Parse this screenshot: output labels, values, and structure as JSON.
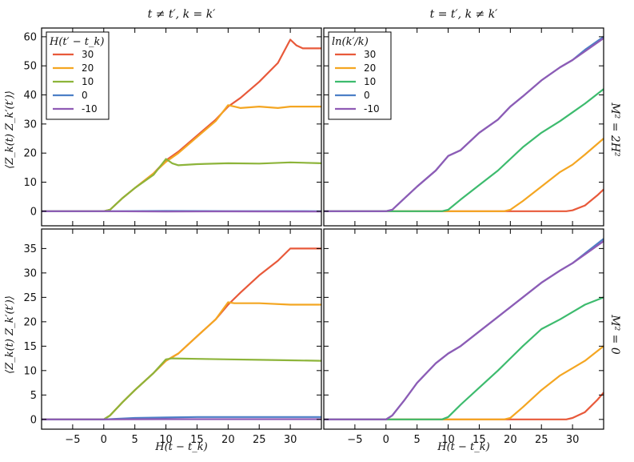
{
  "column_headers": [
    "t ≠ t′,    k = k′",
    "t = t′,    k ≠ k′"
  ],
  "row_labels": [
    "M² = 2H²",
    "M² = 0"
  ],
  "ylabel": "⟨Z_k(t) Z_k′(t′)⟩",
  "xlabel": "H(t − t_k)",
  "colors": {
    "30": "#e8593a",
    "20": "#f4a622",
    "10_left": "#8db43a",
    "10_right": "#3dbb6e",
    "0": "#4c7fc6",
    "-10": "#8f5bb5"
  },
  "chart_data": [
    {
      "type": "line",
      "panel": "top-left",
      "legend_title": "H(t′ − t_k)",
      "legend_position": "top-left",
      "xlim": [
        -10,
        35
      ],
      "ylim": [
        -5,
        63
      ],
      "xticks": [
        -5,
        0,
        5,
        10,
        15,
        20,
        25,
        30
      ],
      "yticks": [
        0,
        10,
        20,
        30,
        40,
        50,
        60
      ],
      "series": [
        {
          "name": "30",
          "color": "#e8593a",
          "points": [
            [
              -10,
              0
            ],
            [
              0,
              0
            ],
            [
              1,
              0.5
            ],
            [
              3,
              4.5
            ],
            [
              5,
              8
            ],
            [
              8,
              13
            ],
            [
              10,
              17.5
            ],
            [
              12,
              20.5
            ],
            [
              15,
              26
            ],
            [
              18,
              31.5
            ],
            [
              20,
              36
            ],
            [
              22,
              39
            ],
            [
              25,
              44.5
            ],
            [
              28,
              51
            ],
            [
              30,
              59
            ],
            [
              31,
              57
            ],
            [
              32,
              56
            ],
            [
              35,
              56
            ]
          ]
        },
        {
          "name": "20",
          "color": "#f4a622",
          "points": [
            [
              -10,
              0
            ],
            [
              0,
              0
            ],
            [
              1,
              0.5
            ],
            [
              3,
              4.5
            ],
            [
              5,
              8
            ],
            [
              8,
              13
            ],
            [
              10,
              17
            ],
            [
              12,
              20
            ],
            [
              15,
              25.5
            ],
            [
              18,
              31
            ],
            [
              20,
              36.5
            ],
            [
              21,
              36
            ],
            [
              22,
              35.5
            ],
            [
              25,
              36
            ],
            [
              28,
              35.5
            ],
            [
              30,
              36
            ],
            [
              32,
              36
            ],
            [
              35,
              36
            ]
          ]
        },
        {
          "name": "10",
          "color": "#8db43a",
          "points": [
            [
              -10,
              0
            ],
            [
              0,
              0
            ],
            [
              1,
              0.5
            ],
            [
              3,
              4.5
            ],
            [
              5,
              8
            ],
            [
              8,
              12.5
            ],
            [
              10,
              18
            ],
            [
              11,
              16.5
            ],
            [
              12,
              15.8
            ],
            [
              15,
              16.2
            ],
            [
              20,
              16.5
            ],
            [
              25,
              16.4
            ],
            [
              30,
              16.8
            ],
            [
              35,
              16.5
            ]
          ]
        },
        {
          "name": "0",
          "color": "#4c7fc6",
          "points": [
            [
              -10,
              0
            ],
            [
              0,
              0
            ],
            [
              10,
              0.1
            ],
            [
              20,
              0.05
            ],
            [
              35,
              0
            ]
          ]
        },
        {
          "name": "-10",
          "color": "#8f5bb5",
          "points": [
            [
              -10,
              0
            ],
            [
              0,
              0
            ],
            [
              10,
              -0.1
            ],
            [
              20,
              -0.05
            ],
            [
              35,
              -0.1
            ]
          ]
        }
      ]
    },
    {
      "type": "line",
      "panel": "top-right",
      "legend_title": "ln(k′/k)",
      "legend_position": "top-left",
      "xlim": [
        -10,
        35
      ],
      "ylim": [
        -5,
        63
      ],
      "xticks": [
        -5,
        0,
        5,
        10,
        15,
        20,
        25,
        30
      ],
      "yticks": [
        0,
        10,
        20,
        30,
        40,
        50,
        60
      ],
      "series": [
        {
          "name": "30",
          "color": "#e8593a",
          "points": [
            [
              -10,
              0
            ],
            [
              29,
              0
            ],
            [
              30,
              0.3
            ],
            [
              32,
              2
            ],
            [
              34,
              5.5
            ],
            [
              35,
              7.5
            ]
          ]
        },
        {
          "name": "20",
          "color": "#f4a622",
          "points": [
            [
              -10,
              0
            ],
            [
              19,
              0
            ],
            [
              20,
              0.5
            ],
            [
              22,
              3.5
            ],
            [
              25,
              8.5
            ],
            [
              28,
              13.5
            ],
            [
              30,
              16
            ],
            [
              32,
              19.5
            ],
            [
              35,
              25
            ]
          ]
        },
        {
          "name": "10",
          "color": "#3dbb6e",
          "points": [
            [
              -10,
              0
            ],
            [
              9,
              0
            ],
            [
              10,
              0.5
            ],
            [
              12,
              4
            ],
            [
              15,
              9
            ],
            [
              18,
              14
            ],
            [
              20,
              18
            ],
            [
              22,
              22
            ],
            [
              25,
              27
            ],
            [
              28,
              31
            ],
            [
              30,
              34
            ],
            [
              32,
              37
            ],
            [
              35,
              42
            ]
          ]
        },
        {
          "name": "0",
          "color": "#4c7fc6",
          "points": [
            [
              -10,
              0
            ],
            [
              0,
              0
            ],
            [
              1,
              0.5
            ],
            [
              3,
              4.5
            ],
            [
              5,
              8.5
            ],
            [
              8,
              14
            ],
            [
              10,
              19
            ],
            [
              12,
              21
            ],
            [
              15,
              27
            ],
            [
              18,
              31.5
            ],
            [
              20,
              36
            ],
            [
              22,
              39.5
            ],
            [
              25,
              45
            ],
            [
              28,
              49.5
            ],
            [
              30,
              52
            ],
            [
              32,
              55.5
            ],
            [
              35,
              60
            ]
          ]
        },
        {
          "name": "-10",
          "color": "#8f5bb5",
          "points": [
            [
              -10,
              0
            ],
            [
              0,
              0
            ],
            [
              1,
              0.5
            ],
            [
              3,
              4.5
            ],
            [
              5,
              8.5
            ],
            [
              8,
              14
            ],
            [
              10,
              19
            ],
            [
              12,
              21
            ],
            [
              15,
              27
            ],
            [
              18,
              31.5
            ],
            [
              20,
              36
            ],
            [
              22,
              39.5
            ],
            [
              25,
              45
            ],
            [
              28,
              49.5
            ],
            [
              30,
              52
            ],
            [
              32,
              55
            ],
            [
              35,
              59.5
            ]
          ]
        }
      ]
    },
    {
      "type": "line",
      "panel": "bottom-left",
      "xlabel": "H(t − t_k)",
      "xlim": [
        -10,
        35
      ],
      "ylim": [
        -2,
        39
      ],
      "xticks": [
        -5,
        0,
        5,
        10,
        15,
        20,
        25,
        30
      ],
      "yticks": [
        0,
        5,
        10,
        15,
        20,
        25,
        30,
        35
      ],
      "series": [
        {
          "name": "30",
          "color": "#e8593a",
          "points": [
            [
              -10,
              0
            ],
            [
              0,
              0
            ],
            [
              1,
              0.8
            ],
            [
              3,
              3.5
            ],
            [
              5,
              6
            ],
            [
              8,
              9.5
            ],
            [
              10,
              12
            ],
            [
              12,
              13.5
            ],
            [
              15,
              17
            ],
            [
              18,
              20.5
            ],
            [
              20,
              23.5
            ],
            [
              22,
              26
            ],
            [
              25,
              29.5
            ],
            [
              28,
              32.5
            ],
            [
              30,
              35
            ],
            [
              32,
              35
            ],
            [
              35,
              35
            ]
          ]
        },
        {
          "name": "20",
          "color": "#f4a622",
          "points": [
            [
              -10,
              0
            ],
            [
              0,
              0
            ],
            [
              1,
              0.8
            ],
            [
              3,
              3.5
            ],
            [
              5,
              6
            ],
            [
              8,
              9.5
            ],
            [
              10,
              12
            ],
            [
              12,
              13.5
            ],
            [
              15,
              17
            ],
            [
              18,
              20.5
            ],
            [
              20,
              24
            ],
            [
              21,
              23.8
            ],
            [
              25,
              23.8
            ],
            [
              30,
              23.5
            ],
            [
              35,
              23.5
            ]
          ]
        },
        {
          "name": "10",
          "color": "#8db43a",
          "points": [
            [
              -10,
              0
            ],
            [
              0,
              0
            ],
            [
              1,
              0.8
            ],
            [
              3,
              3.5
            ],
            [
              5,
              6
            ],
            [
              8,
              9.5
            ],
            [
              10,
              12.3
            ],
            [
              11,
              12.5
            ],
            [
              15,
              12.4
            ],
            [
              20,
              12.3
            ],
            [
              25,
              12.2
            ],
            [
              30,
              12.1
            ],
            [
              35,
              12
            ]
          ]
        },
        {
          "name": "0",
          "color": "#4c7fc6",
          "points": [
            [
              -10,
              0
            ],
            [
              0,
              0
            ],
            [
              5,
              0.3
            ],
            [
              10,
              0.4
            ],
            [
              15,
              0.5
            ],
            [
              20,
              0.5
            ],
            [
              25,
              0.5
            ],
            [
              35,
              0.5
            ]
          ]
        },
        {
          "name": "-10",
          "color": "#8f5bb5",
          "points": [
            [
              -10,
              0
            ],
            [
              0,
              0
            ],
            [
              10,
              0.05
            ],
            [
              20,
              0.05
            ],
            [
              35,
              0.05
            ]
          ]
        }
      ]
    },
    {
      "type": "line",
      "panel": "bottom-right",
      "xlabel": "H(t − t_k)",
      "xlim": [
        -10,
        35
      ],
      "ylim": [
        -2,
        39
      ],
      "xticks": [
        -5,
        0,
        5,
        10,
        15,
        20,
        25,
        30
      ],
      "yticks": [
        0,
        5,
        10,
        15,
        20,
        25,
        30,
        35
      ],
      "series": [
        {
          "name": "30",
          "color": "#e8593a",
          "points": [
            [
              -10,
              0
            ],
            [
              29,
              0
            ],
            [
              30,
              0.3
            ],
            [
              32,
              1.5
            ],
            [
              34,
              4
            ],
            [
              35,
              5.5
            ]
          ]
        },
        {
          "name": "20",
          "color": "#f4a622",
          "points": [
            [
              -10,
              0
            ],
            [
              19,
              0
            ],
            [
              20,
              0.3
            ],
            [
              22,
              2.5
            ],
            [
              25,
              6
            ],
            [
              28,
              9
            ],
            [
              30,
              10.5
            ],
            [
              32,
              12
            ],
            [
              35,
              15
            ]
          ]
        },
        {
          "name": "10",
          "color": "#3dbb6e",
          "points": [
            [
              -10,
              0
            ],
            [
              9,
              0
            ],
            [
              10,
              0.5
            ],
            [
              12,
              3
            ],
            [
              15,
              6.5
            ],
            [
              18,
              10
            ],
            [
              20,
              12.5
            ],
            [
              22,
              15
            ],
            [
              25,
              18.5
            ],
            [
              28,
              20.5
            ],
            [
              30,
              22
            ],
            [
              32,
              23.5
            ],
            [
              35,
              25
            ]
          ]
        },
        {
          "name": "0",
          "color": "#4c7fc6",
          "points": [
            [
              -10,
              0
            ],
            [
              0,
              0
            ],
            [
              1,
              0.8
            ],
            [
              3,
              4
            ],
            [
              5,
              7.5
            ],
            [
              8,
              11.5
            ],
            [
              10,
              13.5
            ],
            [
              12,
              15
            ],
            [
              15,
              18
            ],
            [
              18,
              21
            ],
            [
              20,
              23
            ],
            [
              22,
              25
            ],
            [
              25,
              28
            ],
            [
              28,
              30.5
            ],
            [
              30,
              32
            ],
            [
              32,
              34
            ],
            [
              35,
              37
            ]
          ]
        },
        {
          "name": "-10",
          "color": "#8f5bb5",
          "points": [
            [
              -10,
              0
            ],
            [
              0,
              0
            ],
            [
              1,
              0.8
            ],
            [
              3,
              4
            ],
            [
              5,
              7.5
            ],
            [
              8,
              11.5
            ],
            [
              10,
              13.5
            ],
            [
              12,
              15
            ],
            [
              15,
              18
            ],
            [
              18,
              21
            ],
            [
              20,
              23
            ],
            [
              22,
              25
            ],
            [
              25,
              28
            ],
            [
              28,
              30.5
            ],
            [
              30,
              32
            ],
            [
              32,
              33.8
            ],
            [
              35,
              36.5
            ]
          ]
        }
      ]
    }
  ]
}
